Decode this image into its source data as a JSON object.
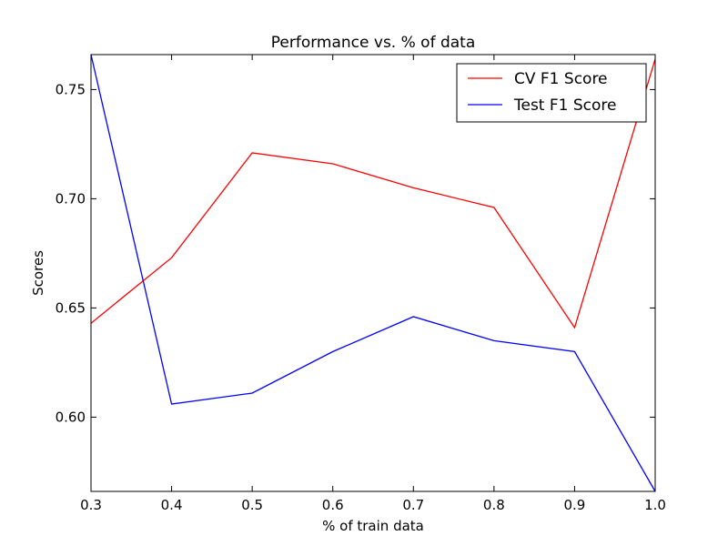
{
  "chart_data": {
    "type": "line",
    "title": "Performance vs. % of data",
    "xlabel": "% of train data",
    "ylabel": "Scores",
    "xlim": [
      0.3,
      1.0
    ],
    "ylim": [
      0.566,
      0.766
    ],
    "xticks": [
      0.3,
      0.4,
      0.5,
      0.6,
      0.7,
      0.8,
      0.9,
      1.0
    ],
    "xtick_labels": [
      "0.3",
      "0.4",
      "0.5",
      "0.6",
      "0.7",
      "0.8",
      "0.9",
      "1.0"
    ],
    "yticks": [
      0.6,
      0.65,
      0.7,
      0.75
    ],
    "ytick_labels": [
      "0.60",
      "0.65",
      "0.70",
      "0.75"
    ],
    "grid": false,
    "legend_position": "top-right",
    "x": [
      0.3,
      0.4,
      0.5,
      0.6,
      0.7,
      0.8,
      0.9,
      1.0
    ],
    "series": [
      {
        "name": "CV F1 Score",
        "color": "#ff0000",
        "values": [
          0.643,
          0.673,
          0.721,
          0.716,
          0.705,
          0.696,
          0.641,
          0.764
        ]
      },
      {
        "name": "Test F1 Score",
        "color": "#0000ff",
        "values": [
          0.766,
          0.606,
          0.611,
          0.63,
          0.646,
          0.635,
          0.63,
          0.566
        ]
      }
    ]
  }
}
